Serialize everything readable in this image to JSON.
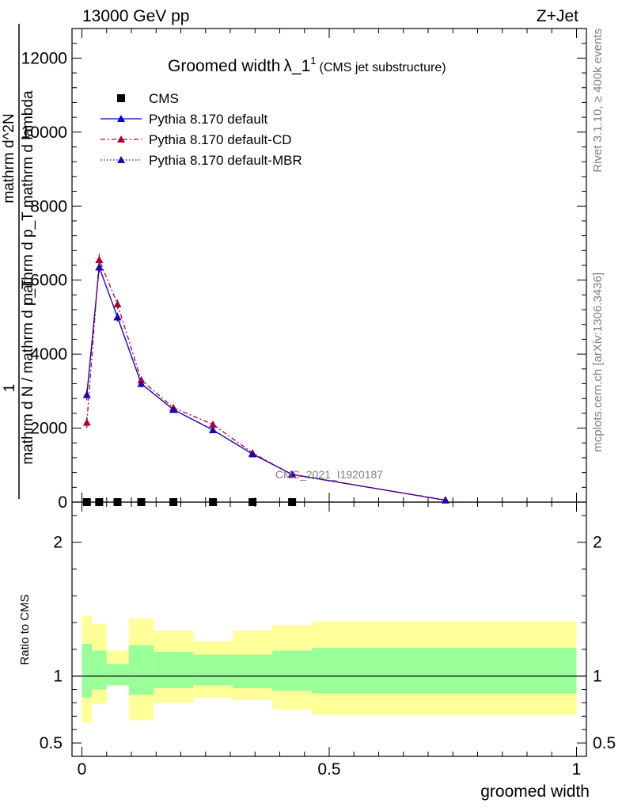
{
  "header": {
    "energy_label": "13000 GeV pp",
    "process_label": "Z+Jet"
  },
  "side_labels": {
    "rivet": "Rivet 3.1.10, ≥ 400k events",
    "mcplots": "mcplots.cern.ch [arXiv:1306.3436]"
  },
  "chart_data": {
    "type": "line",
    "title_main": "Groomed width",
    "title_symbol": "λ_1",
    "title_superscript": "1",
    "title_sub": "(CMS jet substructure)",
    "watermark": "CMS_2021_I1920187",
    "xlabel": "groomed width",
    "ylabel_main_numerator": "1",
    "ylabel_main_denominator": "mathrm d N / mathrm d p_T",
    "ylabel_main_fraction_line1": "mathrm d",
    "ylabel_main_fraction_line2": "mathrm d p_T mathrm d lambda",
    "ylabel_main_sub": "mathrm d^2N",
    "ylabel_ratio": "Ratio to CMS",
    "xlim": [
      -0.02,
      1.02
    ],
    "ylim_main": [
      0,
      12800
    ],
    "ylim_ratio": [
      0.4,
      2.3
    ],
    "x_ticks": [
      0,
      0.5,
      1
    ],
    "x_tick_labels": [
      "0",
      "0.5",
      "1"
    ],
    "y_ticks_main": [
      0,
      2000,
      4000,
      6000,
      8000,
      10000,
      12000
    ],
    "y_tick_labels_main": [
      "0",
      "2000",
      "4000",
      "6000",
      "8000",
      "10000",
      "12000"
    ],
    "y_ticks_ratio": [
      0.5,
      1,
      2
    ],
    "y_tick_labels_ratio": [
      "0.5",
      "1",
      "2"
    ],
    "legend": [
      {
        "label": "CMS",
        "style": "square",
        "color": "#000000"
      },
      {
        "label": "Pythia 8.170 default",
        "style": "solid",
        "color": "#0000cc"
      },
      {
        "label": "Pythia 8.170 default-CD",
        "style": "dashdot",
        "color": "#b00030"
      },
      {
        "label": "Pythia 8.170 default-MBR",
        "style": "dotted",
        "color": "#2200aa"
      }
    ],
    "cms_points": {
      "x": [
        0.01,
        0.035,
        0.072,
        0.12,
        0.185,
        0.265,
        0.345,
        0.425
      ],
      "y": [
        0,
        0,
        0,
        0,
        0,
        0,
        0,
        0
      ]
    },
    "series": [
      {
        "name": "Pythia 8.170 default",
        "color": "#0000cc",
        "dash": "",
        "x": [
          0.01,
          0.035,
          0.072,
          0.12,
          0.185,
          0.265,
          0.345,
          0.425,
          0.735
        ],
        "y": [
          2900,
          6350,
          5000,
          3200,
          2500,
          1950,
          1300,
          750,
          50
        ],
        "err": [
          150,
          150,
          120,
          100,
          90,
          80,
          60,
          50,
          20
        ]
      },
      {
        "name": "Pythia 8.170 default-CD",
        "color": "#b00030",
        "dash": "6,3,2,3",
        "x": [
          0.01,
          0.035,
          0.072,
          0.12,
          0.185,
          0.265,
          0.345,
          0.425,
          0.735
        ],
        "y": [
          2150,
          6550,
          5350,
          3300,
          2550,
          2100,
          1330,
          740,
          60
        ],
        "err": [
          150,
          160,
          130,
          100,
          90,
          80,
          60,
          50,
          20
        ]
      },
      {
        "name": "Pythia 8.170 default-MBR",
        "color": "#2200aa",
        "dash": "1.5,2.5",
        "x": [
          0.01,
          0.035,
          0.072,
          0.12,
          0.185,
          0.265,
          0.345,
          0.425,
          0.735
        ],
        "y": [
          2900,
          6350,
          5000,
          3200,
          2500,
          1950,
          1300,
          750,
          50
        ],
        "err": [
          0,
          0,
          0,
          0,
          0,
          0,
          0,
          0,
          0
        ]
      }
    ],
    "ratio_bands": {
      "bins": [
        [
          0,
          0.02
        ],
        [
          0.02,
          0.05
        ],
        [
          0.05,
          0.095
        ],
        [
          0.095,
          0.145
        ],
        [
          0.145,
          0.225
        ],
        [
          0.225,
          0.305
        ],
        [
          0.305,
          0.385
        ],
        [
          0.385,
          0.465
        ],
        [
          0.465,
          1.0
        ]
      ],
      "yellow_lo": [
        0.65,
        0.79,
        0.93,
        0.67,
        0.8,
        0.84,
        0.82,
        0.75,
        0.71
      ],
      "yellow_hi": [
        1.45,
        1.39,
        1.19,
        1.43,
        1.34,
        1.26,
        1.34,
        1.38,
        1.41
      ],
      "green_lo": [
        0.84,
        0.9,
        0.93,
        0.86,
        0.91,
        0.93,
        0.91,
        0.89,
        0.87
      ],
      "green_hi": [
        1.24,
        1.19,
        1.09,
        1.23,
        1.18,
        1.16,
        1.16,
        1.19,
        1.21
      ],
      "yellow_color": "#ffff99",
      "green_color": "#99ff99"
    }
  }
}
